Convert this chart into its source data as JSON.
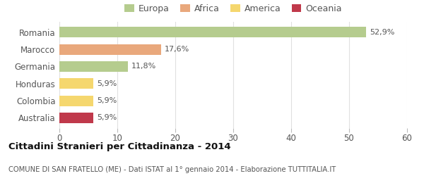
{
  "categories": [
    "Romania",
    "Marocco",
    "Germania",
    "Honduras",
    "Colombia",
    "Australia"
  ],
  "values": [
    52.9,
    17.6,
    11.8,
    5.9,
    5.9,
    5.9
  ],
  "labels": [
    "52,9%",
    "17,6%",
    "11,8%",
    "5,9%",
    "5,9%",
    "5,9%"
  ],
  "bar_colors": [
    "#b5cc8e",
    "#e9a87c",
    "#b5cc8e",
    "#f5d76e",
    "#f5d76e",
    "#c0394b"
  ],
  "continent_colors": {
    "Europa": "#b5cc8e",
    "Africa": "#e9a87c",
    "America": "#f5d76e",
    "Oceania": "#c0394b"
  },
  "legend_order": [
    "Europa",
    "Africa",
    "America",
    "Oceania"
  ],
  "xlim": [
    0,
    60
  ],
  "xticks": [
    0,
    10,
    20,
    30,
    40,
    50,
    60
  ],
  "title": "Cittadini Stranieri per Cittadinanza - 2014",
  "subtitle": "COMUNE DI SAN FRATELLO (ME) - Dati ISTAT al 1° gennaio 2014 - Elaborazione TUTTITALIA.IT",
  "background_color": "#ffffff",
  "grid_color": "#e0e0e0"
}
